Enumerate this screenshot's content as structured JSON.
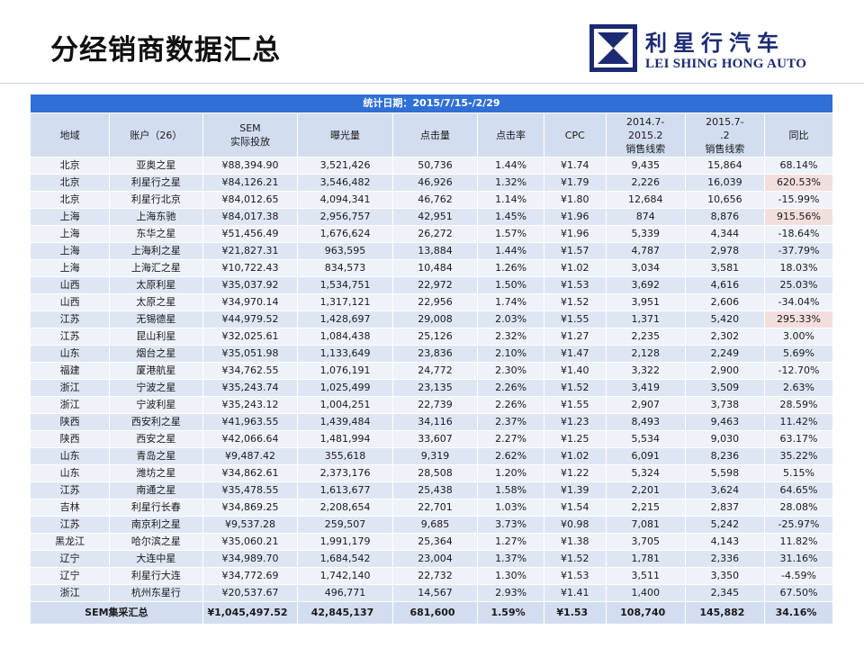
{
  "title": "分经销商数据汇总",
  "logo": {
    "cn": "利星行汽车",
    "en": "LEI SHING HONG AUTO",
    "icon": "hourglass-logo-icon"
  },
  "table": {
    "banner": "统计日期：2015/7/15-/2/29",
    "headers": [
      [
        "地域"
      ],
      [
        "账户（26）"
      ],
      [
        "SEM",
        "实际投放"
      ],
      [
        "曝光量"
      ],
      [
        "点击量"
      ],
      [
        "点击率"
      ],
      [
        "CPC"
      ],
      [
        "2014.7-",
        "2015.2",
        "销售线索"
      ],
      [
        "2015.7-",
        ".2",
        "销售线索"
      ],
      [
        "同比"
      ]
    ],
    "rows": [
      [
        "北京",
        "亚奥之星",
        "¥88,394.90",
        "3,521,426",
        "50,736",
        "1.44%",
        "¥1.74",
        "9,435",
        "15,864",
        "68.14%"
      ],
      [
        "北京",
        "利星行之星",
        "¥84,126.21",
        "3,546,482",
        "46,926",
        "1.32%",
        "¥1.79",
        "2,226",
        "16,039",
        "620.53%"
      ],
      [
        "北京",
        "利星行北京",
        "¥84,012.65",
        "4,094,341",
        "46,762",
        "1.14%",
        "¥1.80",
        "12,684",
        "10,656",
        "-15.99%"
      ],
      [
        "上海",
        "上海东驰",
        "¥84,017.38",
        "2,956,757",
        "42,951",
        "1.45%",
        "¥1.96",
        "874",
        "8,876",
        "915.56%"
      ],
      [
        "上海",
        "东华之星",
        "¥51,456.49",
        "1,676,624",
        "26,272",
        "1.57%",
        "¥1.96",
        "5,339",
        "4,344",
        "-18.64%"
      ],
      [
        "上海",
        "上海利之星",
        "¥21,827.31",
        "963,595",
        "13,884",
        "1.44%",
        "¥1.57",
        "4,787",
        "2,978",
        "-37.79%"
      ],
      [
        "上海",
        "上海汇之星",
        "¥10,722.43",
        "834,573",
        "10,484",
        "1.26%",
        "¥1.02",
        "3,034",
        "3,581",
        "18.03%"
      ],
      [
        "山西",
        "太原利星",
        "¥35,037.92",
        "1,534,751",
        "22,972",
        "1.50%",
        "¥1.53",
        "3,692",
        "4,616",
        "25.03%"
      ],
      [
        "山西",
        "太原之星",
        "¥34,970.14",
        "1,317,121",
        "22,956",
        "1.74%",
        "¥1.52",
        "3,951",
        "2,606",
        "-34.04%"
      ],
      [
        "江苏",
        "无锡德星",
        "¥44,979.52",
        "1,428,697",
        "29,008",
        "2.03%",
        "¥1.55",
        "1,371",
        "5,420",
        "295.33%"
      ],
      [
        "江苏",
        "昆山利星",
        "¥32,025.61",
        "1,084,438",
        "25,126",
        "2.32%",
        "¥1.27",
        "2,235",
        "2,302",
        "3.00%"
      ],
      [
        "山东",
        "烟台之星",
        "¥35,051.98",
        "1,133,649",
        "23,836",
        "2.10%",
        "¥1.47",
        "2,128",
        "2,249",
        "5.69%"
      ],
      [
        "福建",
        "厦港航星",
        "¥34,762.55",
        "1,076,191",
        "24,772",
        "2.30%",
        "¥1.40",
        "3,322",
        "2,900",
        "-12.70%"
      ],
      [
        "浙江",
        "宁波之星",
        "¥35,243.74",
        "1,025,499",
        "23,135",
        "2.26%",
        "¥1.52",
        "3,419",
        "3,509",
        "2.63%"
      ],
      [
        "浙江",
        "宁波利星",
        "¥35,243.12",
        "1,004,251",
        "22,739",
        "2.26%",
        "¥1.55",
        "2,907",
        "3,738",
        "28.59%"
      ],
      [
        "陕西",
        "西安利之星",
        "¥41,963.55",
        "1,439,484",
        "34,116",
        "2.37%",
        "¥1.23",
        "8,493",
        "9,463",
        "11.42%"
      ],
      [
        "陕西",
        "西安之星",
        "¥42,066.64",
        "1,481,994",
        "33,607",
        "2.27%",
        "¥1.25",
        "5,534",
        "9,030",
        "63.17%"
      ],
      [
        "山东",
        "青岛之星",
        "¥9,487.42",
        "355,618",
        "9,319",
        "2.62%",
        "¥1.02",
        "6,091",
        "8,236",
        "35.22%"
      ],
      [
        "山东",
        "潍坊之星",
        "¥34,862.61",
        "2,373,176",
        "28,508",
        "1.20%",
        "¥1.22",
        "5,324",
        "5,598",
        "5.15%"
      ],
      [
        "江苏",
        "南通之星",
        "¥35,478.55",
        "1,613,677",
        "25,438",
        "1.58%",
        "¥1.39",
        "2,201",
        "3,624",
        "64.65%"
      ],
      [
        "吉林",
        "利星行长春",
        "¥34,869.25",
        "2,208,654",
        "22,701",
        "1.03%",
        "¥1.54",
        "2,215",
        "2,837",
        "28.08%"
      ],
      [
        "江苏",
        "南京利之星",
        "¥9,537.28",
        "259,507",
        "9,685",
        "3.73%",
        "¥0.98",
        "7,081",
        "5,242",
        "-25.97%"
      ],
      [
        "黑龙江",
        "哈尔滨之星",
        "¥35,060.21",
        "1,991,179",
        "25,364",
        "1.27%",
        "¥1.38",
        "3,705",
        "4,143",
        "11.82%"
      ],
      [
        "辽宁",
        "大连中星",
        "¥34,989.70",
        "1,684,542",
        "23,004",
        "1.37%",
        "¥1.52",
        "1,781",
        "2,336",
        "31.16%"
      ],
      [
        "辽宁",
        "利星行大连",
        "¥34,772.69",
        "1,742,140",
        "22,732",
        "1.30%",
        "¥1.53",
        "3,511",
        "3,350",
        "-4.59%"
      ],
      [
        "浙江",
        "杭州东星行",
        "¥20,537.67",
        "496,771",
        "14,567",
        "2.93%",
        "¥1.41",
        "1,400",
        "2,345",
        "67.50%"
      ]
    ],
    "highlight_cells": [
      [
        1,
        9
      ],
      [
        3,
        9
      ],
      [
        9,
        9
      ]
    ],
    "highlight_color": "#f3dede",
    "total": [
      "SEM集采汇总",
      "¥1,045,497.52",
      "42,845,137",
      "681,600",
      "1.59%",
      "¥1.53",
      "108,740",
      "145,882",
      "34.16%"
    ]
  }
}
